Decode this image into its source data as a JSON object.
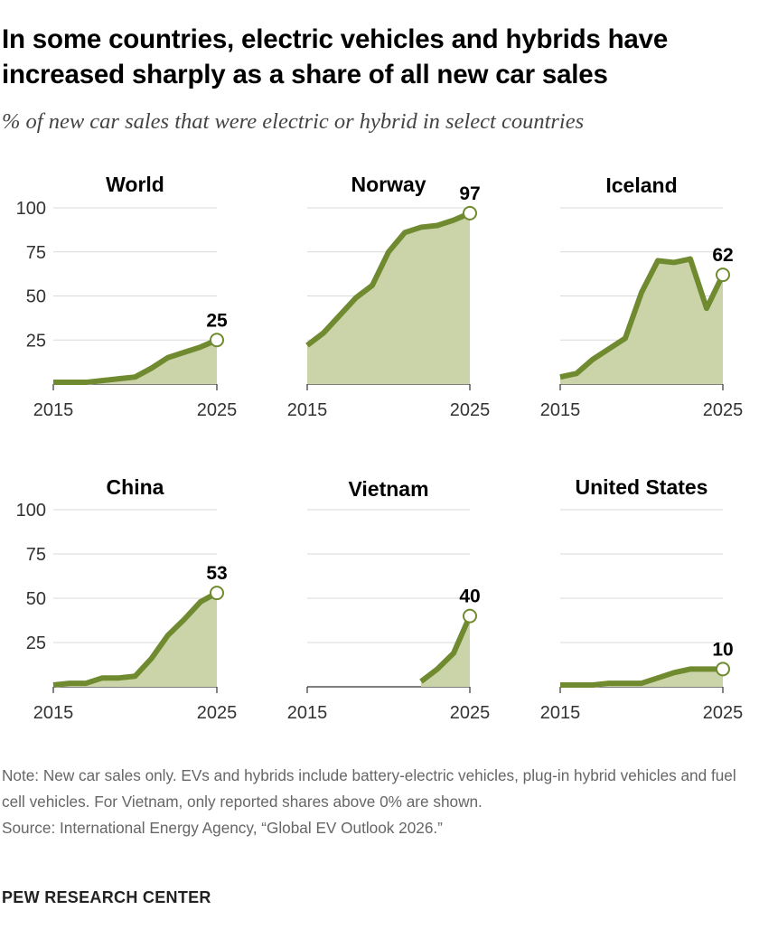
{
  "header": {
    "title": "In some countries, electric vehicles and hybrids have increased sharply as a share of all new car sales",
    "subtitle": "% of new car sales that were electric or hybrid in select countries"
  },
  "footer": {
    "note": "Note: New car sales only. EVs and hybrids include battery-electric vehicles, plug-in hybrid vehicles and fuel cell vehicles. For Vietnam, only reported shares above 0% are shown.",
    "source": "Source: International Energy Agency, “Global EV Outlook 2026.”",
    "brand": "PEW RESEARCH CENTER"
  },
  "colors": {
    "line": "#6f8a2f",
    "area": "#cbd3a9",
    "grid": "#d9d9d9",
    "axis": "#333333",
    "marker_fill": "#ffffff"
  },
  "chart_data": [
    {
      "type": "area",
      "title": "World",
      "x": [
        2015,
        2016,
        2017,
        2018,
        2019,
        2020,
        2021,
        2022,
        2023,
        2024,
        2025
      ],
      "values": [
        1,
        1,
        1,
        2,
        3,
        4,
        9,
        15,
        18,
        21,
        25
      ],
      "label": "25",
      "yticks": [
        25,
        50,
        75,
        100
      ],
      "xtick_labels": [
        "2015",
        "2025"
      ],
      "ylim": [
        0,
        100
      ],
      "grid": true
    },
    {
      "type": "area",
      "title": "Norway",
      "x": [
        2015,
        2016,
        2017,
        2018,
        2019,
        2020,
        2021,
        2022,
        2023,
        2024,
        2025
      ],
      "values": [
        22,
        29,
        39,
        49,
        56,
        75,
        86,
        89,
        90,
        93,
        97
      ],
      "label": "97",
      "yticks": [
        25,
        50,
        75,
        100
      ],
      "xtick_labels": [
        "2015",
        "2025"
      ],
      "ylim": [
        0,
        100
      ],
      "grid": true
    },
    {
      "type": "area",
      "title": "Iceland",
      "x": [
        2015,
        2016,
        2017,
        2018,
        2019,
        2020,
        2021,
        2022,
        2023,
        2024,
        2025
      ],
      "values": [
        4,
        6,
        14,
        20,
        26,
        52,
        70,
        69,
        71,
        43,
        62
      ],
      "label": "62",
      "yticks": [
        25,
        50,
        75,
        100
      ],
      "xtick_labels": [
        "2015",
        "2025"
      ],
      "ylim": [
        0,
        100
      ],
      "grid": true
    },
    {
      "type": "area",
      "title": "China",
      "x": [
        2015,
        2016,
        2017,
        2018,
        2019,
        2020,
        2021,
        2022,
        2023,
        2024,
        2025
      ],
      "values": [
        1,
        2,
        2,
        5,
        5,
        6,
        16,
        29,
        38,
        48,
        53
      ],
      "label": "53",
      "yticks": [
        25,
        50,
        75,
        100
      ],
      "xtick_labels": [
        "2015",
        "2025"
      ],
      "ylim": [
        0,
        100
      ],
      "grid": true
    },
    {
      "type": "area",
      "title": "Vietnam",
      "x": [
        2022,
        2023,
        2024,
        2025
      ],
      "values": [
        3,
        10,
        19,
        40
      ],
      "label": "40",
      "yticks": [
        25,
        50,
        75,
        100
      ],
      "xtick_labels": [
        "2015",
        "2025"
      ],
      "ylim": [
        0,
        100
      ],
      "grid": true
    },
    {
      "type": "area",
      "title": "United States",
      "x": [
        2015,
        2016,
        2017,
        2018,
        2019,
        2020,
        2021,
        2022,
        2023,
        2024,
        2025
      ],
      "values": [
        1,
        1,
        1,
        2,
        2,
        2,
        5,
        8,
        10,
        10,
        10
      ],
      "label": "10",
      "yticks": [
        25,
        50,
        75,
        100
      ],
      "xtick_labels": [
        "2015",
        "2025"
      ],
      "ylim": [
        0,
        100
      ],
      "grid": true
    }
  ]
}
